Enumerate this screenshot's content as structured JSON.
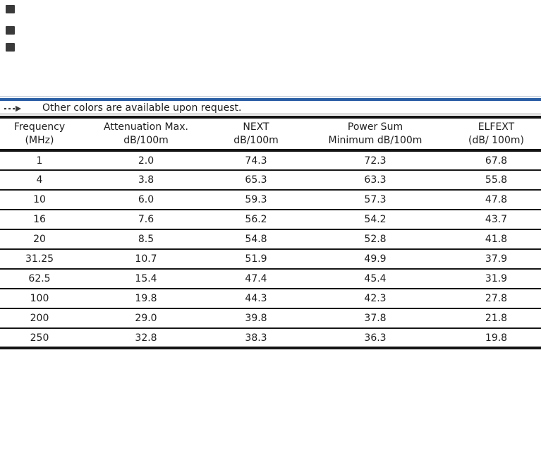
{
  "colors": {
    "accent_rule": "#2a5fa5",
    "table_rule": "#141414",
    "text": "#1e1e1e",
    "swatch": "#3a3a3a"
  },
  "icons": {
    "color_swatches": [
      "color-swatch-icon",
      "color-swatch-icon",
      "color-swatch-icon"
    ],
    "note_arrow": "dashed-right-arrow-icon"
  },
  "note": {
    "text": "Other colors are available upon request."
  },
  "table": {
    "headers": [
      {
        "line1": "Frequency",
        "line2": "(MHz)"
      },
      {
        "line1": "Attenuation Max.",
        "line2": "dB/100m"
      },
      {
        "line1": "NEXT",
        "line2": "dB/100m"
      },
      {
        "line1": "Power Sum",
        "line2": "Minimum dB/100m"
      },
      {
        "line1": "ELFEXT",
        "line2": "(dB/ 100m)"
      }
    ],
    "rows": [
      [
        "1",
        "2.0",
        "74.3",
        "72.3",
        "67.8"
      ],
      [
        "4",
        "3.8",
        "65.3",
        "63.3",
        "55.8"
      ],
      [
        "10",
        "6.0",
        "59.3",
        "57.3",
        "47.8"
      ],
      [
        "16",
        "7.6",
        "56.2",
        "54.2",
        "43.7"
      ],
      [
        "20",
        "8.5",
        "54.8",
        "52.8",
        "41.8"
      ],
      [
        "31.25",
        "10.7",
        "51.9",
        "49.9",
        "37.9"
      ],
      [
        "62.5",
        "15.4",
        "47.4",
        "45.4",
        "31.9"
      ],
      [
        "100",
        "19.8",
        "44.3",
        "42.3",
        "27.8"
      ],
      [
        "200",
        "29.0",
        "39.8",
        "37.8",
        "21.8"
      ],
      [
        "250",
        "32.8",
        "38.3",
        "36.3",
        "19.8"
      ]
    ]
  }
}
